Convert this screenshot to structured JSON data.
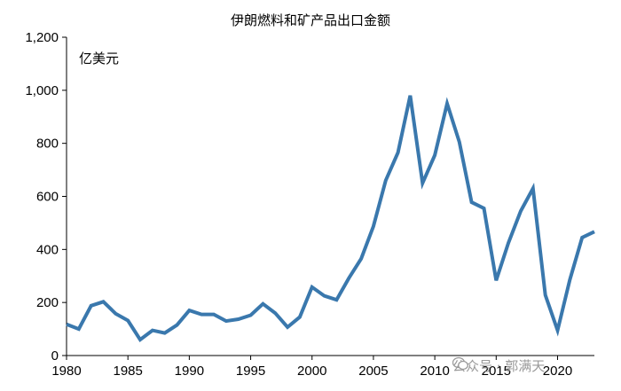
{
  "chart_data": {
    "type": "line",
    "title": "伊朗燃料和矿产品出口金额",
    "unit_label": "亿美元",
    "xlabel": "",
    "ylabel": "",
    "ylim": [
      0,
      1200
    ],
    "y_ticks": [
      0,
      200,
      400,
      600,
      800,
      1000,
      1200
    ],
    "y_tick_labels": [
      "0",
      "200",
      "400",
      "600",
      "800",
      "1,000",
      "1,200"
    ],
    "xlim": [
      1980,
      2023
    ],
    "x_ticks": [
      1980,
      1985,
      1990,
      1995,
      2000,
      2005,
      2010,
      2015,
      2020
    ],
    "x_tick_labels": [
      "1980",
      "1985",
      "1990",
      "1995",
      "2000",
      "2005",
      "2010",
      "2015",
      "2020"
    ],
    "grid": false,
    "series": [
      {
        "color": "#3a78ad",
        "x": [
          1980,
          1981,
          1982,
          1983,
          1984,
          1985,
          1986,
          1987,
          1988,
          1989,
          1990,
          1991,
          1992,
          1993,
          1994,
          1995,
          1996,
          1997,
          1998,
          1999,
          2000,
          2001,
          2002,
          2003,
          2004,
          2005,
          2006,
          2007,
          2008,
          2009,
          2010,
          2011,
          2012,
          2013,
          2014,
          2015,
          2016,
          2017,
          2018,
          2019,
          2020,
          2021,
          2022,
          2023
        ],
        "values": [
          118,
          100,
          188,
          203,
          158,
          132,
          60,
          95,
          85,
          115,
          170,
          155,
          155,
          130,
          137,
          152,
          195,
          160,
          107,
          145,
          258,
          225,
          210,
          292,
          365,
          487,
          660,
          765,
          980,
          650,
          755,
          950,
          805,
          578,
          555,
          283,
          425,
          545,
          630,
          228,
          95,
          285,
          445,
          467
        ]
      }
    ]
  },
  "watermark": {
    "icon": "wechat-icon",
    "text": "公众号 · 郭满天"
  }
}
